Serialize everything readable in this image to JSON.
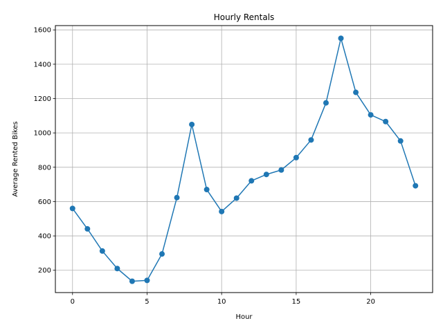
{
  "chart_data": {
    "type": "line",
    "title": "Hourly Rentals",
    "xlabel": "Hour",
    "ylabel": "Average Rented Bikes",
    "xlim": [
      -1.15,
      24.15
    ],
    "ylim": [
      70,
      1625
    ],
    "grid": true,
    "x_ticks": [
      0,
      5,
      10,
      15,
      20
    ],
    "y_ticks": [
      200,
      400,
      600,
      800,
      1000,
      1200,
      1400,
      1600
    ],
    "color": "#1f77b4",
    "series": [
      {
        "x": [
          0,
          1,
          2,
          3,
          4,
          5,
          6,
          7,
          8,
          9,
          10,
          11,
          12,
          13,
          14,
          15,
          16,
          17,
          18,
          19,
          20,
          21,
          22,
          23
        ],
        "values": [
          560,
          441,
          312,
          210,
          136,
          141,
          295,
          623,
          1049,
          670,
          542,
          620,
          721,
          758,
          784,
          856,
          959,
          1175,
          1551,
          1236,
          1105,
          1066,
          953,
          692
        ]
      }
    ]
  }
}
